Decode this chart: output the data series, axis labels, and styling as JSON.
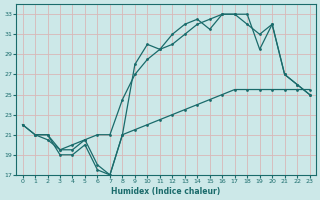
{
  "xlabel": "Humidex (Indice chaleur)",
  "bg_color": "#cce8e8",
  "grid_color": "#b8d8d8",
  "line_color": "#1a6b6b",
  "xlim": [
    -0.5,
    23.5
  ],
  "ylim": [
    17,
    34
  ],
  "xticks": [
    0,
    1,
    2,
    3,
    4,
    5,
    6,
    7,
    8,
    9,
    10,
    11,
    12,
    13,
    14,
    15,
    16,
    17,
    18,
    19,
    20,
    21,
    22,
    23
  ],
  "yticks": [
    17,
    19,
    21,
    23,
    25,
    27,
    29,
    31,
    33
  ],
  "line1_x": [
    0,
    1,
    2,
    3,
    4,
    5,
    6,
    7,
    8,
    9,
    10,
    11,
    12,
    13,
    14,
    15,
    16,
    17,
    18,
    19,
    20,
    21,
    22,
    23
  ],
  "line1_y": [
    22,
    21,
    21,
    19,
    19,
    20,
    17.5,
    17,
    21,
    28,
    30,
    29.5,
    31,
    32,
    32.5,
    31.5,
    33,
    33,
    33,
    29.5,
    32,
    27,
    26,
    25
  ],
  "line2_x": [
    1,
    2,
    3,
    4,
    5,
    6,
    7,
    8,
    9,
    10,
    11,
    12,
    13,
    14,
    15,
    16,
    17,
    18,
    19,
    20,
    21,
    22,
    23
  ],
  "line2_y": [
    21,
    20.5,
    19.5,
    20,
    20.5,
    21,
    21,
    24.5,
    27,
    28.5,
    29.5,
    30,
    31,
    32,
    32.5,
    33,
    33,
    32,
    31,
    32,
    27,
    26,
    25
  ],
  "line3_x": [
    0,
    1,
    2,
    3,
    4,
    5,
    6,
    7,
    8,
    9,
    10,
    11,
    12,
    13,
    14,
    15,
    16,
    17,
    18,
    19,
    20,
    21,
    22,
    23
  ],
  "line3_y": [
    22,
    21,
    21,
    19.5,
    19.5,
    20.5,
    18,
    17,
    21,
    21.5,
    22,
    22.5,
    23,
    23.5,
    24,
    24.5,
    25,
    25.5,
    25.5,
    25.5,
    25.5,
    25.5,
    25.5,
    25.5
  ]
}
